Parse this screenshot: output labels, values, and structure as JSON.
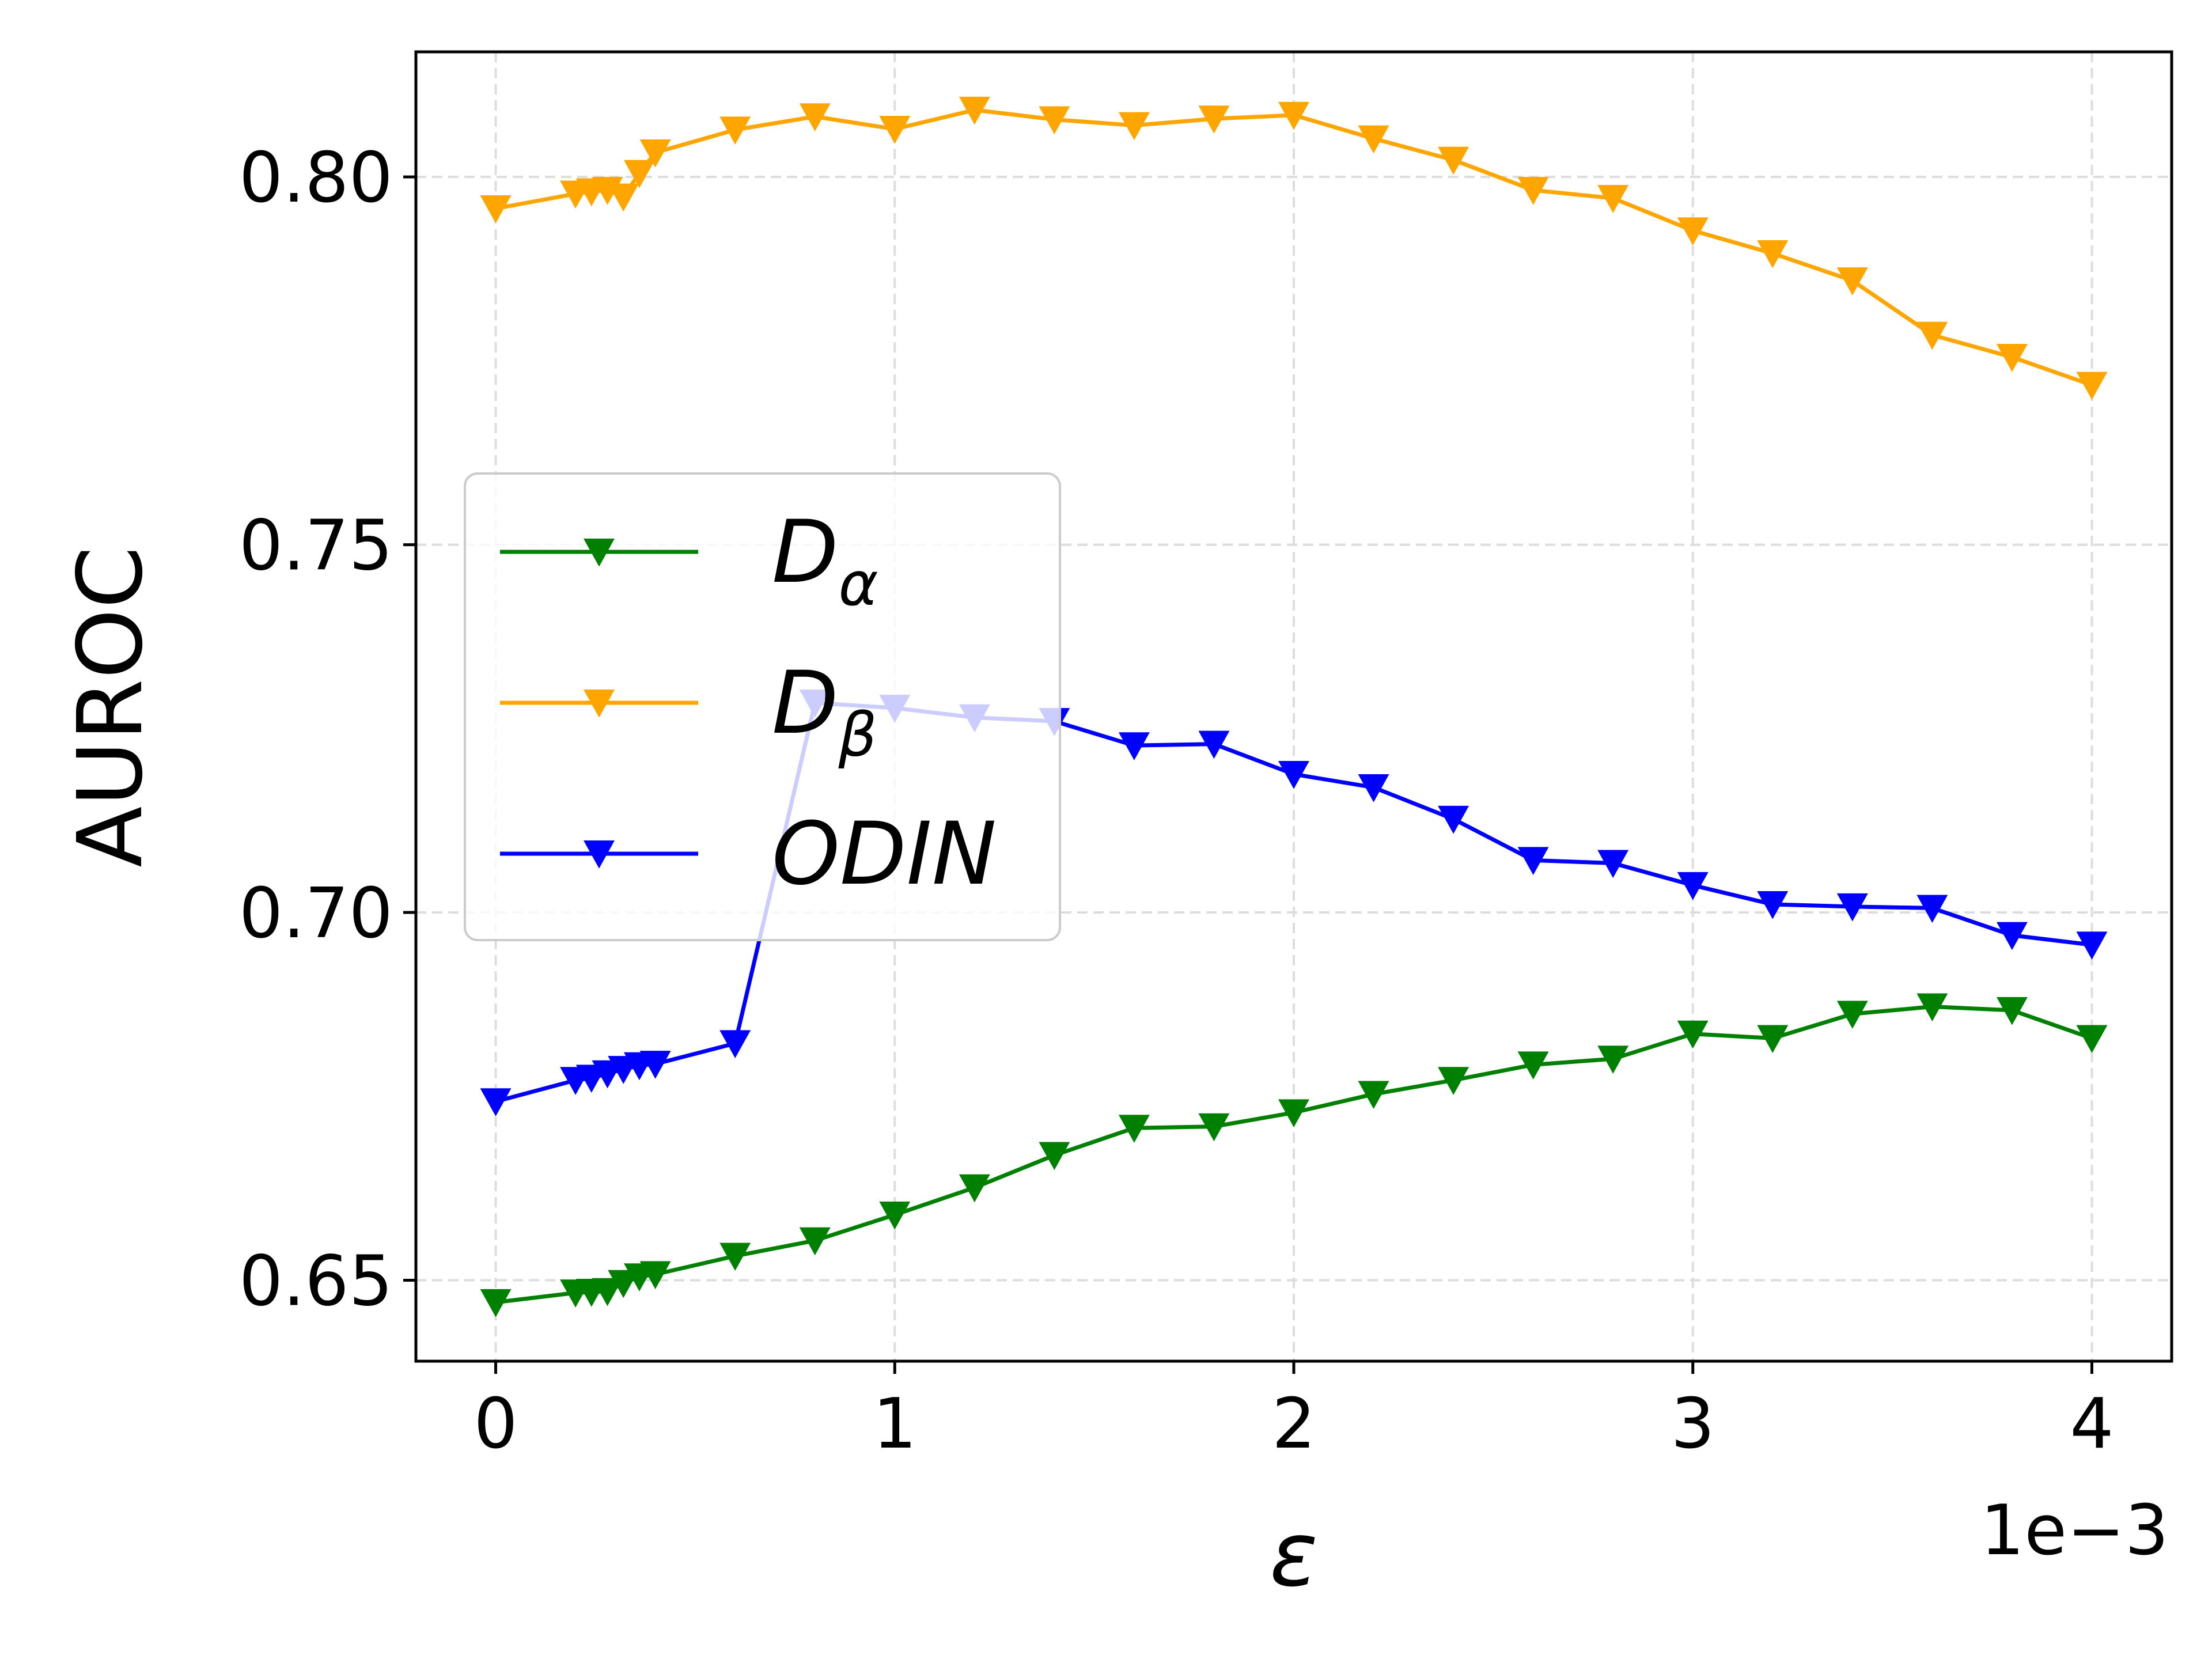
{
  "chart_data": {
    "type": "line",
    "title": "",
    "xlabel": "ε",
    "ylabel": "AUROC",
    "x_offset_label": "1e−3",
    "xlim": [
      -0.2,
      4.2
    ],
    "ylim": [
      0.639,
      0.817
    ],
    "xticks": [
      0,
      1,
      2,
      3,
      4
    ],
    "xtick_labels": [
      "0",
      "1",
      "2",
      "3",
      "4"
    ],
    "yticks": [
      0.65,
      0.7,
      0.75,
      0.8
    ],
    "ytick_labels": [
      "0.65",
      "0.70",
      "0.75",
      "0.80"
    ],
    "grid": true,
    "legend_position": "center-left",
    "marker": "triangle-down",
    "series": [
      {
        "name": "Dα",
        "legend_base": "D",
        "legend_sub": "α",
        "color": "#008000",
        "x": [
          0,
          0.2,
          0.24,
          0.28,
          0.32,
          0.36,
          0.4,
          0.6,
          0.8,
          1.0,
          1.2,
          1.4,
          1.6,
          1.8,
          2.0,
          2.2,
          2.4,
          2.6,
          2.8,
          3.0,
          3.2,
          3.4,
          3.6,
          3.8,
          4.0
        ],
        "y": [
          0.647,
          0.6483,
          0.6484,
          0.6485,
          0.6496,
          0.6505,
          0.6508,
          0.6533,
          0.6554,
          0.6589,
          0.6626,
          0.667,
          0.6707,
          0.6709,
          0.6728,
          0.6753,
          0.6772,
          0.6793,
          0.6801,
          0.6835,
          0.6829,
          0.6862,
          0.6872,
          0.6867,
          0.6829
        ]
      },
      {
        "name": "Dβ",
        "legend_base": "D",
        "legend_sub": "β",
        "color": "#ffa500",
        "x": [
          0,
          0.2,
          0.24,
          0.28,
          0.32,
          0.36,
          0.4,
          0.6,
          0.8,
          1.0,
          1.2,
          1.4,
          1.6,
          1.8,
          2.0,
          2.2,
          2.4,
          2.6,
          2.8,
          3.0,
          3.2,
          3.4,
          3.6,
          3.8,
          4.0
        ],
        "y": [
          0.7957,
          0.7977,
          0.798,
          0.7982,
          0.7973,
          0.8005,
          0.8033,
          0.8064,
          0.8082,
          0.8065,
          0.8091,
          0.8078,
          0.807,
          0.8079,
          0.8084,
          0.8052,
          0.8023,
          0.7982,
          0.7971,
          0.7927,
          0.7896,
          0.7859,
          0.7785,
          0.7755,
          0.7717
        ]
      },
      {
        "name": "ODIN",
        "legend_base": "ODIN",
        "legend_sub": "",
        "color": "#0000ff",
        "x": [
          0,
          0.2,
          0.24,
          0.28,
          0.32,
          0.36,
          0.4,
          0.6,
          0.8,
          1.0,
          1.2,
          1.4,
          1.6,
          1.8,
          2.0,
          2.2,
          2.4,
          2.6,
          2.8,
          3.0,
          3.2,
          3.4,
          3.6,
          3.8,
          4.0
        ],
        "y": [
          0.6743,
          0.6772,
          0.6775,
          0.6781,
          0.6787,
          0.6792,
          0.6794,
          0.6822,
          0.7285,
          0.7278,
          0.7265,
          0.726,
          0.7227,
          0.7229,
          0.7188,
          0.717,
          0.7127,
          0.7071,
          0.7067,
          0.7037,
          0.7011,
          0.7008,
          0.7006,
          0.6969,
          0.6956
        ]
      }
    ]
  }
}
